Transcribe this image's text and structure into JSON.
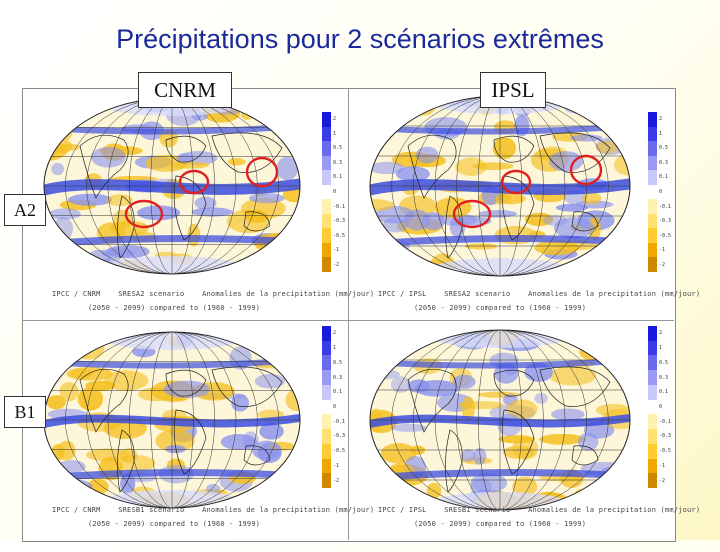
{
  "slide": {
    "title": "Précipitations pour 2 scénarios extrêmes",
    "columns": [
      "CNRM",
      "IPSL"
    ],
    "rows": [
      "A2",
      "B1"
    ]
  },
  "panels": [
    {
      "model": "CNRM",
      "scenario": "A2",
      "caption_line1": "IPCC / CNRM    SRESA2 scenario    Anomalies de la precipitation (mm/jour)",
      "caption_line2": "(2050 - 2099) compared to (1960 - 1999)",
      "highlighted": true
    },
    {
      "model": "IPSL",
      "scenario": "A2",
      "caption_line1": "IPCC / IPSL    SRESA2 scenario    Anomalies de la precipitation (mm/jour)",
      "caption_line2": "(2050 - 2099) compared to (1960 - 1999)",
      "highlighted": true
    },
    {
      "model": "CNRM",
      "scenario": "B1",
      "caption_line1": "IPCC / CNRM    SRESB1 scenario    Anomalies de la precipitation (mm/jour)",
      "caption_line2": "(2050 - 2099) compared to (1960 - 1999)",
      "highlighted": false
    },
    {
      "model": "IPSL",
      "scenario": "B1",
      "caption_line1": "IPCC / IPSL    SRESB1 scenario    Anomalies de la precipitation (mm/jour)",
      "caption_line2": "(2050 - 2099) compared to (1960 - 1999)",
      "highlighted": false
    }
  ],
  "colorbar": {
    "ticks": [
      "2",
      "1",
      "0.5",
      "0.3",
      "0.1",
      "0",
      "-0.1",
      "-0.3",
      "-0.5",
      "-1",
      "-2"
    ],
    "colors": [
      "#1a1adf",
      "#3a3ae8",
      "#6a6aef",
      "#9a9af5",
      "#c8c8fa",
      "#ffffff",
      "#fff2b0",
      "#ffe070",
      "#ffcc33",
      "#f0a800",
      "#d08800"
    ]
  },
  "colors": {
    "title": "#1a2a9a",
    "circle": "#e02020",
    "wet": "#3c4ee0",
    "dry": "#f5c020"
  }
}
